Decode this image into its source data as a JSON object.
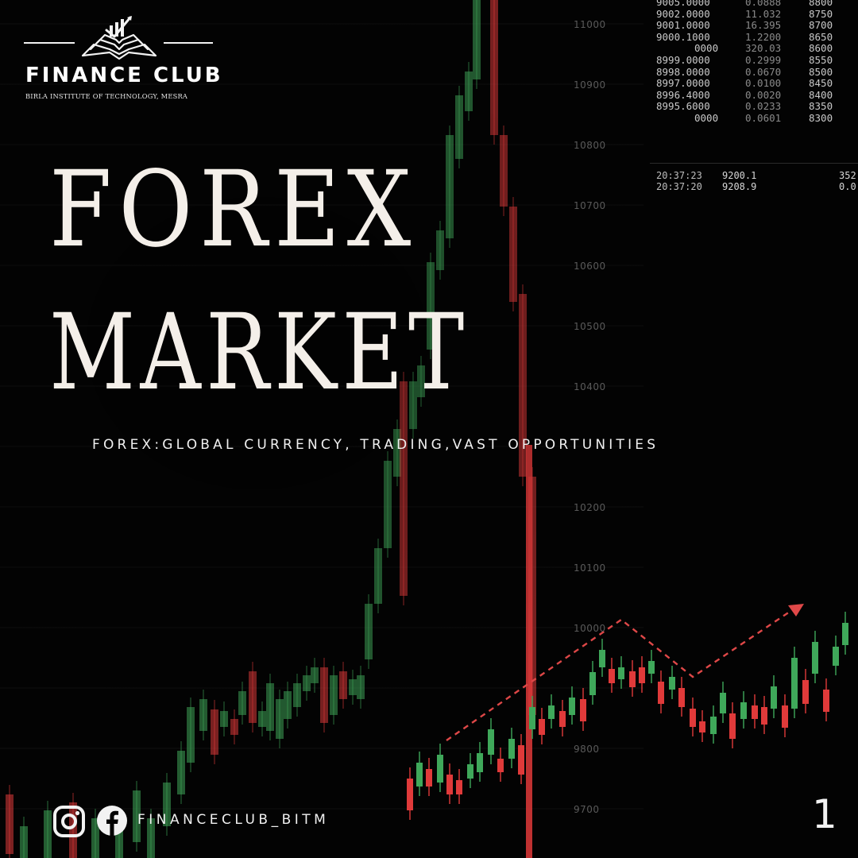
{
  "brand": {
    "name": "FINANCE CLUB",
    "institute": "BIRLA INSTITUTE OF TECHNOLOGY, MESRA"
  },
  "title": {
    "line1": "FOREX",
    "line2": "MARKET"
  },
  "subtitle": "FOREX:GLOBAL CURRENCY, TRADING,VAST OPPORTUNITIES",
  "footer": {
    "handle": "FINANCECLUB_BITM",
    "social_icons": [
      "instagram-icon",
      "facebook-icon"
    ],
    "page_number": "1"
  },
  "price_axis": [
    "11000",
    "10900",
    "10800",
    "10700",
    "10600",
    "10500",
    "10400",
    "10200",
    "10100",
    "10000",
    "9800",
    "9700"
  ],
  "order_book": [
    [
      "9005.0000",
      "0.0888",
      "8800"
    ],
    [
      "9002.0000",
      "11.032",
      "8750"
    ],
    [
      "9001.0000",
      "16.395",
      "8700"
    ],
    [
      "9000.1000",
      "1.2200",
      "8650"
    ],
    [
      "0000",
      "320.03",
      "8600"
    ],
    [
      "8999.0000",
      "0.2999",
      "8550"
    ],
    [
      "8998.0000",
      "0.0670",
      "8500"
    ],
    [
      "8997.0000",
      "0.0100",
      "8450"
    ],
    [
      "8996.4000",
      "0.0020",
      "8400"
    ],
    [
      "8995.6000",
      "0.0233",
      "8350"
    ],
    [
      "0000",
      "0.0601",
      "8300"
    ]
  ],
  "trades": [
    [
      "20:37:23",
      "9200.1",
      "352"
    ],
    [
      "20:37:20",
      "9208.9",
      "0.0"
    ]
  ],
  "colors": {
    "background": "#030303",
    "bull": "#3fa85a",
    "bear": "#e03a3a",
    "text": "#f4efe9"
  }
}
